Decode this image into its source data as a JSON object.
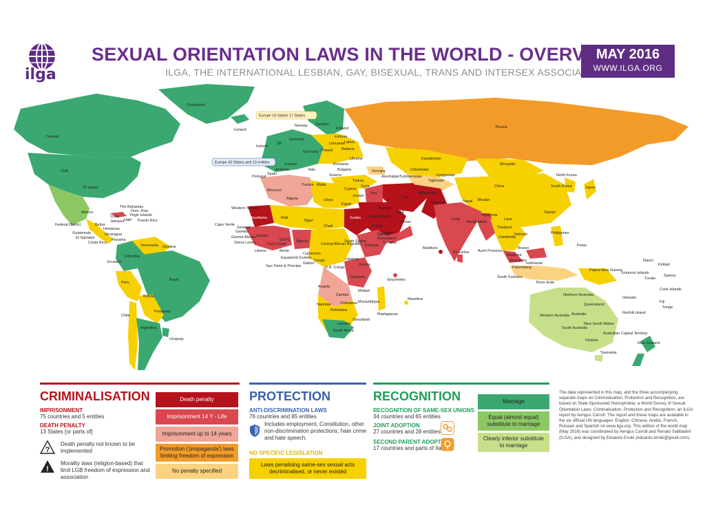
{
  "header": {
    "logo_text": "ilga",
    "title": "SEXUAL ORIENTATION LAWS IN THE WORLD - OVERVIEW",
    "subtitle": "ILGA, THE INTERNATIONAL LESBIAN, GAY, BISEXUAL, TRANS AND INTERSEX ASSOCIATION",
    "date": "MAY 2016",
    "url": "WWW.ILGA.ORG"
  },
  "colors": {
    "brand": "#5e2d83",
    "death": "#b5121b",
    "imprison_life": "#d9474f",
    "imprison_14": "#f0a597",
    "promotion": "#f39b28",
    "no_penalty": "#fbd280",
    "protection": "#3a62ad",
    "no_legislation": "#f7d000",
    "recognition": "#1f9e58",
    "marriage": "#3aa870",
    "equal_substitute": "#8cc764",
    "inferior_substitute": "#c8df8a",
    "ocean": "#ffffff"
  },
  "map": {
    "labels": {
      "greenland": "Greenland",
      "iceland": "Iceland",
      "canada": "Canada",
      "usa": "USA",
      "states23": "23 states",
      "mexico": "Mexico",
      "federal": "Federal District",
      "bahamas": "The Bahamas",
      "dom_rep": "Dom. Rep.",
      "cuba": "Cuba",
      "jamaica": "Jamaica",
      "haiti": "Haiti",
      "puerto_rico": "Puerto Rico",
      "virgin": "Virgin Islands",
      "belize": "Belize",
      "guatemala": "Guatemala",
      "honduras": "Honduras",
      "el_salvador": "El Salvador",
      "nicaragua": "Nicaragua",
      "costa_rica": "Costa Rica",
      "panama": "Panama",
      "venezuela": "Venezuela",
      "guyana": "Guyana",
      "colombia": "Colombia",
      "ecuador": "Ecuador",
      "peru": "Peru",
      "brazil": "Brazil",
      "bolivia": "Bolivia",
      "paraguay": "Paraguay",
      "chile": "Chile",
      "argentina": "Argentina",
      "uruguay": "Uruguay",
      "norway": "Norway",
      "sweden": "Sweden",
      "finland": "Finland",
      "estonia": "Estonia",
      "latvia": "Latvia",
      "lithuania": "Lithuania",
      "belarus": "Belarus",
      "denmark": "Denmark",
      "uk": "UK",
      "ireland": "Ireland",
      "germany": "Germany",
      "poland": "Poland",
      "ukraine": "Ukraine",
      "france": "France",
      "spain": "Spain",
      "portugal": "Portugal",
      "italy": "Italy",
      "andorra": "Andorra",
      "romania": "Romania",
      "bulgaria": "Bulgaria",
      "greece": "Greece",
      "turkey": "Turkey",
      "malta": "Malta",
      "cyprus": "Cyprus",
      "europe_box": "Europe 16 States 17 States",
      "europe_prot": "Europe 42 States and 13 entities",
      "russia": "Russia",
      "kazakhstan": "Kazakhstan",
      "mongolia": "Mongolia",
      "china": "China",
      "north_korea": "North Korea",
      "south_korea": "South Korea",
      "japan": "Japan",
      "georgia": "Georgia",
      "azerbaijan": "Azerbaijan",
      "uzbekistan": "Uzbekistan",
      "turkmenistan": "Turkmenistan",
      "kyrgyzstan": "Kyrgyzstan",
      "tajikistan": "Tajikistan",
      "afghanistan": "Afghanistan",
      "iran": "Iran",
      "iraq": "Iraq",
      "syria": "Syria",
      "lebanon": "Lebanon",
      "israel": "Israel",
      "palestine": "Palestine",
      "jordan": "Jordan",
      "kuwait": "Kuwait",
      "bahrain": "Bahrain",
      "qatar": "Qatar",
      "uae": "UAE",
      "saudi": "Saudi Arabia",
      "oman": "Oman",
      "yemen": "Yemen",
      "pakistan": "Pakistan",
      "india": "India",
      "nepal": "Nepal",
      "bhutan": "Bhutan",
      "bangladesh": "Bangladesh",
      "myanmar": "Myanmar",
      "thailand": "Thailand",
      "laos": "Laos",
      "vietnam": "Vietnam",
      "cambodia": "Cambodia",
      "taiwan": "Taiwan",
      "philippines": "Philippines",
      "palau": "Palau",
      "malaysia": "Malaysia",
      "singapore": "Singapore",
      "brunei": "Brunei",
      "indonesia": "Indonesia",
      "palembang": "Palembang",
      "aceh": "Aceh Province",
      "south_sumatra": "South Sumatra",
      "timor": "Timor-leste",
      "maldives": "Maldives",
      "sri_lanka": "Sri Lanka",
      "png": "Papua New Guinea",
      "solomon": "Solomon Islands",
      "nauru": "Nauru",
      "kiribati": "Kiribati",
      "samoa": "Samoa",
      "tuvalu": "Tuvalu",
      "cook": "Cook Islands",
      "vanuatu": "Vanuatu",
      "fiji": "Fiji",
      "tonga": "Tonga",
      "norfolk": "Norfolk Island",
      "australia": "Australia",
      "northern_aus": "Northern Australia",
      "queensland": "Queensland",
      "western_aus": "Western Australia",
      "south_aus": "South Australia",
      "nsw": "New South Wales",
      "act": "Australian Capital Territory",
      "victoria": "Victoria",
      "tasmania": "Tasmania",
      "new_zealand": "New Zealand",
      "western_sahara": "Western Sahara",
      "morocco": "Morocco",
      "algeria": "Algeria",
      "tunisia": "Tunisia",
      "libya": "Libya",
      "egypt": "Egypt",
      "mauritania": "Mauritania",
      "mali": "Mali",
      "niger": "Niger",
      "chad": "Chad",
      "sudan": "Sudan",
      "eritrea": "Eritrea",
      "senegal": "Senegal",
      "gambia": "Gambia",
      "guinea_bissau": "Guinea Bissau",
      "guinea": "Guinea",
      "sierra_leone": "Sierra Leone",
      "liberia": "Liberia",
      "ivory_coast": "Ivory Coast",
      "ghana": "GH",
      "togo": "TG",
      "benin": "Benin",
      "nigeria": "Nigeria",
      "cameroon": "Cameroon",
      "car": "Central African Republic",
      "south_sudan": "South Sudan",
      "ethiopia": "Ethiopia",
      "djibouti": "Djibouti",
      "somalia": "Somalia",
      "somaliland": "Somaliland",
      "eq_guinea": "Equatorial Guinea",
      "sao_tome": "Sao Tomé & Principe",
      "gabon": "Gabon",
      "congo": "Congo",
      "drc": "D.R. Congo",
      "uganda": "Uganda",
      "kenya": "Kenya",
      "tanzania": "Tanzania",
      "angola": "Angola",
      "zambia": "Zambia",
      "malawi": "Malawi",
      "mozambique": "Mozambique",
      "zimbabwe": "Zimbabwe",
      "namibia": "Namibia",
      "botswana": "Botswana",
      "swaziland": "Swaziland",
      "lesotho": "Lesotho",
      "south_africa": "South Africa",
      "madagascar": "Madagascar",
      "seychelles": "Seychelles",
      "mauritius": "Mauritius",
      "cape_verde": "Cape Verde"
    }
  },
  "criminalisation": {
    "title": "CRIMINALISATION",
    "imprisonment_heading": "IMPRISONMENT",
    "imprisonment_text": "75 countries and 5 entities",
    "death_heading": "DEATH PENALTY",
    "death_text": "13 States [or parts of]",
    "unknown_text": "Death penalty not known to be implemented",
    "morality_text": "Morality laws (religion-based) that limit LGB freedom of expression and association",
    "boxes": [
      "Death penalty",
      "Imprisonment 14 Y - Life",
      "Imprisonment up to 14 years",
      "Promotion ('propaganda') laws limiting freedom of expression",
      "No penalty specified"
    ]
  },
  "protection": {
    "title": "PROTECTION",
    "heading": "ANTI-DISCRIMINATION LAWS",
    "count": "76 countries and 85 entities",
    "includes": "Includes employment, Constitution, other non-discrimination protections, hate crime and hate speech.",
    "no_spec_heading": "NO SPECIFIC LEGISLATION",
    "no_spec_box": "Laws penalising same-sex sexual acts decriminalised, or never existed"
  },
  "recognition": {
    "title": "RECOGNITION",
    "unions_heading": "RECOGNITION OF SAME-SEX UNIONS",
    "unions_text": "34 countries and 65 entities",
    "joint_heading": "JOINT ADOPTION",
    "joint_text": "27 countries and 28 entities",
    "second_heading": "SECOND PARENT ADOPTION",
    "second_text": "17 countries and parts of Italy",
    "boxes": [
      "Marriage",
      "Equal (almost equal) substitute to marriage",
      "Clearly inferior substitute to marriage"
    ]
  },
  "note": "The data represented in this map, and the three accompanying separate maps on Criminalisation, Protection and Recognition, are based on State-Sponsored Homophobia: a World Survey of Sexual Orientation Laws: Criminalisation, Protection and Recognition, an ILGA report by Aengus Carroll. The report and these maps are available in the six official UN languages: English, Chinese, Arabic, French, Russian and Spanish on www.ilga.org. This edition of the world map (May 2016) was coordinated by Aengus Carroll and Renato Sabbadini (ILGA), and designed by Eduardo Enoki (eduardo.enoki@gmail.com)."
}
